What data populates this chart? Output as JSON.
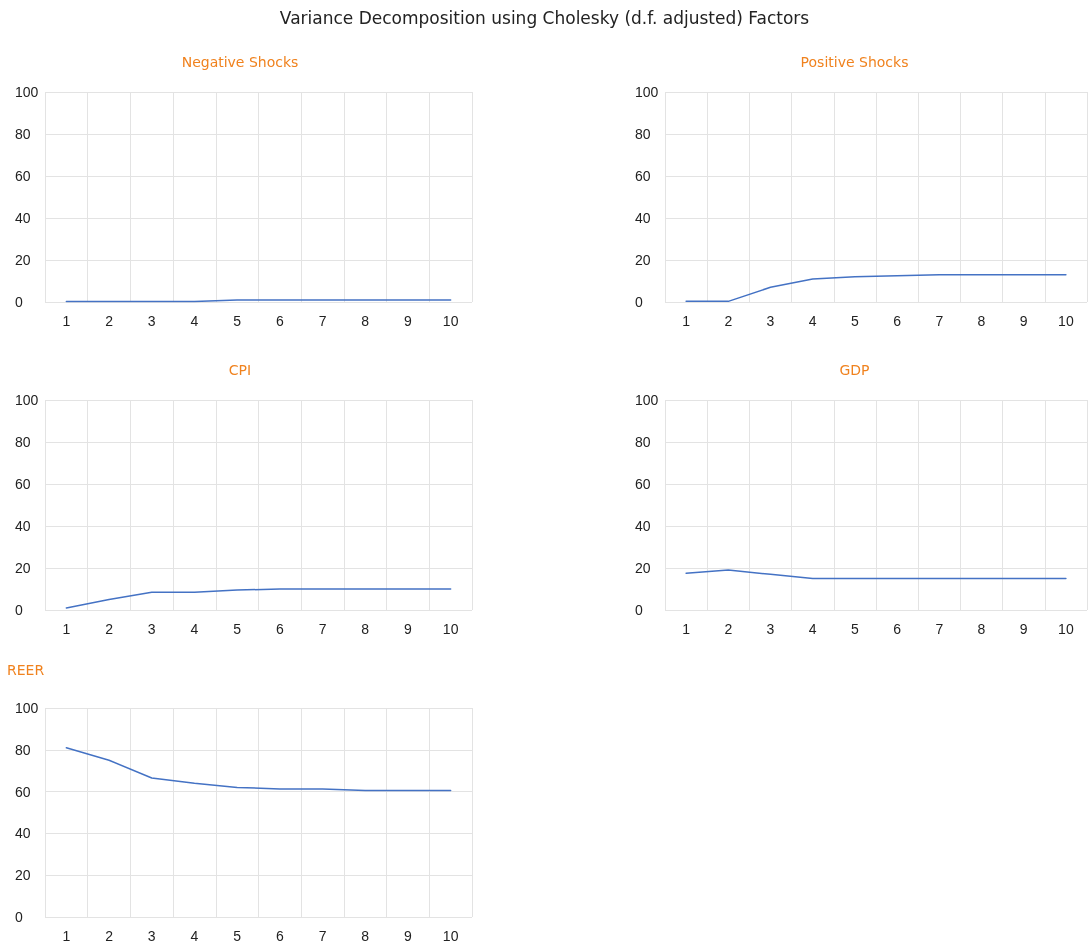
{
  "chart_data": [
    {
      "type": "line",
      "title": "Negative Shocks",
      "annotations": [
        "Variance Decomposition using Cholesky (d.f. adjusted) Factors"
      ],
      "categories": [
        "1",
        "2",
        "3",
        "4",
        "5",
        "6",
        "7",
        "8",
        "9",
        "10"
      ],
      "series": [
        {
          "color": "#4472c4",
          "values": [
            0.2,
            0.2,
            0.2,
            0.2,
            1,
            1,
            1,
            1,
            1,
            1
          ]
        }
      ],
      "ylim": [
        0,
        100
      ],
      "yticks": [
        0,
        20,
        40,
        60,
        80,
        100
      ],
      "grid": true,
      "marker": "none",
      "line_style": "solid"
    },
    {
      "type": "line",
      "title": "Positive Shocks",
      "categories": [
        "1",
        "2",
        "3",
        "4",
        "5",
        "6",
        "7",
        "8",
        "9",
        "10"
      ],
      "series": [
        {
          "color": "#4472c4",
          "values": [
            0.3,
            0.3,
            7,
            11,
            12,
            12.5,
            13,
            13,
            13,
            13
          ]
        }
      ],
      "ylim": [
        0,
        100
      ],
      "yticks": [
        0,
        20,
        40,
        60,
        80,
        100
      ],
      "grid": true,
      "marker": "none",
      "line_style": "solid"
    },
    {
      "type": "line",
      "title": "CPI",
      "categories": [
        "1",
        "2",
        "3",
        "4",
        "5",
        "6",
        "7",
        "8",
        "9",
        "10"
      ],
      "series": [
        {
          "color": "#4472c4",
          "values": [
            1,
            5,
            8.5,
            8.5,
            9.5,
            10,
            10,
            10,
            10,
            10
          ]
        }
      ],
      "ylim": [
        0,
        100
      ],
      "yticks": [
        0,
        20,
        40,
        60,
        80,
        100
      ],
      "grid": true,
      "marker": "none",
      "line_style": "solid"
    },
    {
      "type": "line",
      "title": "GDP",
      "categories": [
        "1",
        "2",
        "3",
        "4",
        "5",
        "6",
        "7",
        "8",
        "9",
        "10"
      ],
      "series": [
        {
          "color": "#4472c4",
          "values": [
            17.5,
            19,
            17,
            15,
            15,
            15,
            15,
            15,
            15,
            15
          ]
        }
      ],
      "ylim": [
        0,
        100
      ],
      "yticks": [
        0,
        20,
        40,
        60,
        80,
        100
      ],
      "grid": true,
      "marker": "none",
      "line_style": "solid"
    },
    {
      "type": "line",
      "title": "REER",
      "categories": [
        "1",
        "2",
        "3",
        "4",
        "5",
        "6",
        "7",
        "8",
        "9",
        "10"
      ],
      "series": [
        {
          "color": "#4472c4",
          "values": [
            81,
            75,
            66.5,
            64,
            62,
            61.3,
            61.3,
            60.5,
            60.5,
            60.5
          ]
        }
      ],
      "ylim": [
        0,
        100
      ],
      "yticks": [
        0,
        20,
        40,
        60,
        80,
        100
      ],
      "grid": true,
      "marker": "none",
      "line_style": "solid"
    }
  ]
}
